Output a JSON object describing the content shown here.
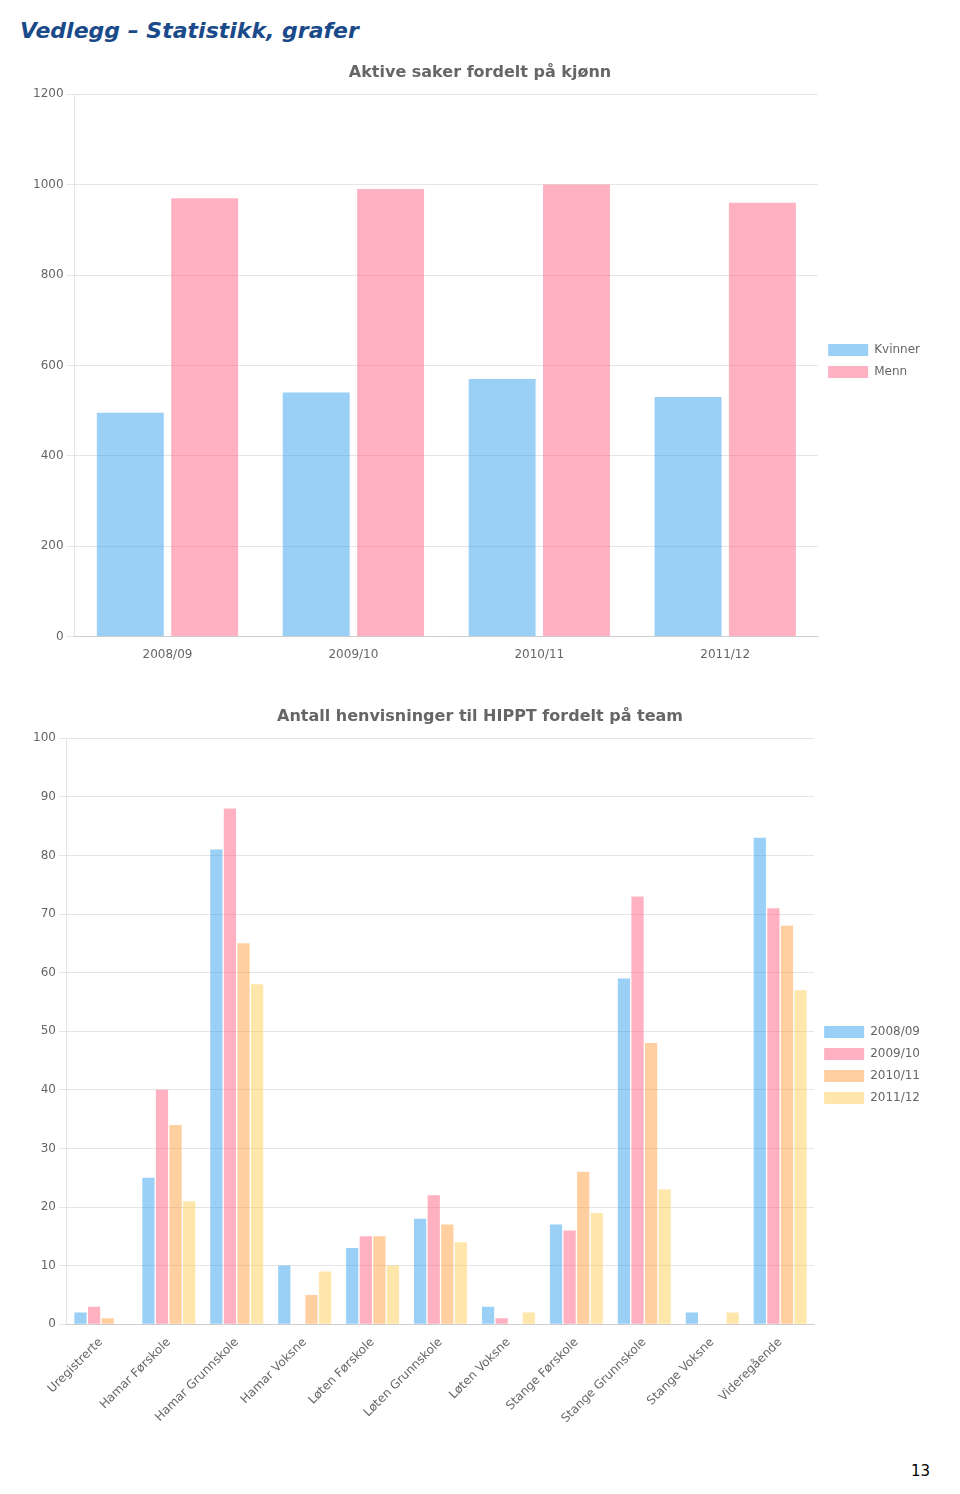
{
  "title": "Vedlegg – Statistikk, grafer",
  "annotations": [
    "13"
  ],
  "chart_data": [
    {
      "type": "bar",
      "title": "Aktive saker fordelt på kjønn",
      "categories": [
        "2008/09",
        "2009/10",
        "2010/11",
        "2011/12"
      ],
      "series": [
        {
          "name": "Kvinner",
          "values": [
            495,
            540,
            570,
            530
          ]
        },
        {
          "name": "Menn",
          "values": [
            970,
            990,
            1000,
            960
          ]
        }
      ],
      "ylim": [
        0,
        1200
      ],
      "yticks": [
        0,
        200,
        400,
        600,
        800,
        1000,
        1200
      ],
      "grid": true,
      "legend": "right"
    },
    {
      "type": "bar",
      "title": "Antall henvisninger til HIPPT fordelt på team",
      "categories": [
        "Uregistrerte",
        "Hamar Førskole",
        "Hamar Grunnskole",
        "Hamar Voksne",
        "Løten Førskole",
        "Løten Grunnskole",
        "Løten Voksne",
        "Stange Førskole",
        "Stange Grunnskole",
        "Stange Voksne",
        "Videregående"
      ],
      "series": [
        {
          "name": "2008/09",
          "values": [
            2,
            25,
            81,
            10,
            13,
            18,
            3,
            17,
            59,
            2,
            83
          ]
        },
        {
          "name": "2009/10",
          "values": [
            3,
            40,
            88,
            0,
            15,
            22,
            1,
            16,
            73,
            0,
            71
          ]
        },
        {
          "name": "2010/11",
          "values": [
            1,
            34,
            65,
            5,
            15,
            17,
            0,
            26,
            48,
            0,
            68
          ]
        },
        {
          "name": "2011/12",
          "values": [
            0,
            21,
            58,
            9,
            10,
            14,
            2,
            19,
            23,
            2,
            57
          ]
        }
      ],
      "ylim": [
        0,
        100
      ],
      "yticks": [
        0,
        10,
        20,
        30,
        40,
        50,
        60,
        70,
        80,
        90,
        100
      ],
      "grid": true,
      "legend": "right"
    }
  ]
}
